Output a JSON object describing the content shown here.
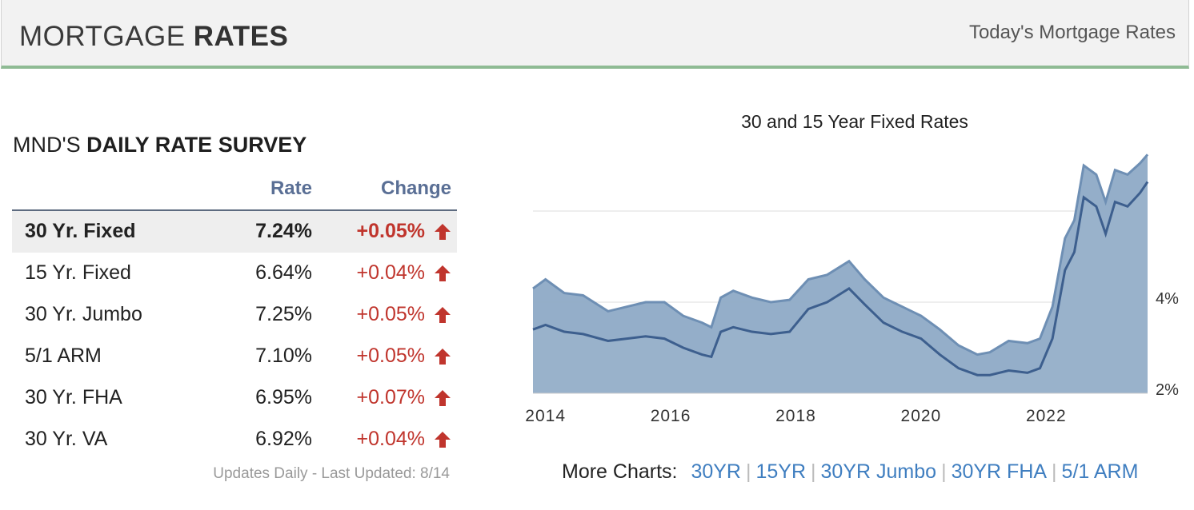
{
  "header": {
    "title_light": "MORTGAGE ",
    "title_bold": "RATES",
    "link": "Today's Mortgage Rates"
  },
  "survey": {
    "title_light": "MND'S ",
    "title_bold": "DAILY RATE SURVEY",
    "col_rate": "Rate",
    "col_change": "Change",
    "rows": [
      {
        "label": "30 Yr. Fixed",
        "rate": "7.24%",
        "change": "+0.05%",
        "direction": "up-arrow-icon"
      },
      {
        "label": "15 Yr. Fixed",
        "rate": "6.64%",
        "change": "+0.04%",
        "direction": "up-arrow-icon"
      },
      {
        "label": "30 Yr. Jumbo",
        "rate": "7.25%",
        "change": "+0.05%",
        "direction": "up-arrow-icon"
      },
      {
        "label": "5/1 ARM",
        "rate": "7.10%",
        "change": "+0.05%",
        "direction": "up-arrow-icon"
      },
      {
        "label": "30 Yr. FHA",
        "rate": "6.95%",
        "change": "+0.07%",
        "direction": "up-arrow-icon"
      },
      {
        "label": "30 Yr. VA",
        "rate": "6.92%",
        "change": "+0.04%",
        "direction": "up-arrow-icon"
      }
    ],
    "updated": "Updates Daily - Last Updated: 8/14"
  },
  "colors": {
    "accent_green": "#8fbb94",
    "header_text_blue": "#5a6f95",
    "change_red": "#c0352d",
    "link_blue": "#3f7ec0",
    "area_30yr": "#8eaac6",
    "line_30yr": "#6e8fb4",
    "line_15yr": "#3d5f8e"
  },
  "chart_data": {
    "type": "area",
    "title": "30 and 15 Year Fixed Rates",
    "xlabel": "",
    "ylabel": "",
    "x_ticks": [
      "2014",
      "2016",
      "2018",
      "2020",
      "2022"
    ],
    "y_ticks": [
      "2%",
      "4%"
    ],
    "ylim": [
      2,
      8
    ],
    "xlim": [
      2013.8,
      2023.62
    ],
    "grid": true,
    "series": [
      {
        "name": "30YR",
        "x": [
          2013.8,
          2014.0,
          2014.3,
          2014.6,
          2015.0,
          2015.3,
          2015.6,
          2015.9,
          2016.2,
          2016.5,
          2016.65,
          2016.8,
          2017.0,
          2017.3,
          2017.6,
          2017.9,
          2018.2,
          2018.5,
          2018.85,
          2019.1,
          2019.4,
          2019.7,
          2020.0,
          2020.3,
          2020.6,
          2020.9,
          2021.1,
          2021.4,
          2021.7,
          2021.9,
          2022.1,
          2022.3,
          2022.45,
          2022.6,
          2022.8,
          2022.95,
          2023.1,
          2023.3,
          2023.5,
          2023.62
        ],
        "values": [
          4.3,
          4.5,
          4.2,
          4.15,
          3.8,
          3.9,
          4.0,
          4.0,
          3.7,
          3.55,
          3.45,
          4.1,
          4.25,
          4.1,
          4.0,
          4.05,
          4.5,
          4.6,
          4.9,
          4.5,
          4.1,
          3.9,
          3.7,
          3.4,
          3.05,
          2.85,
          2.9,
          3.15,
          3.1,
          3.2,
          3.9,
          5.4,
          5.8,
          7.0,
          6.8,
          6.2,
          6.9,
          6.8,
          7.05,
          7.24
        ]
      },
      {
        "name": "15YR",
        "x": [
          2013.8,
          2014.0,
          2014.3,
          2014.6,
          2015.0,
          2015.3,
          2015.6,
          2015.9,
          2016.2,
          2016.5,
          2016.65,
          2016.8,
          2017.0,
          2017.3,
          2017.6,
          2017.9,
          2018.2,
          2018.5,
          2018.85,
          2019.1,
          2019.4,
          2019.7,
          2020.0,
          2020.3,
          2020.6,
          2020.9,
          2021.1,
          2021.4,
          2021.7,
          2021.9,
          2022.1,
          2022.3,
          2022.45,
          2022.6,
          2022.8,
          2022.95,
          2023.1,
          2023.3,
          2023.5,
          2023.62
        ],
        "values": [
          3.4,
          3.5,
          3.35,
          3.3,
          3.15,
          3.2,
          3.25,
          3.2,
          3.0,
          2.85,
          2.8,
          3.35,
          3.45,
          3.35,
          3.3,
          3.35,
          3.85,
          4.0,
          4.3,
          3.95,
          3.55,
          3.35,
          3.2,
          2.85,
          2.55,
          2.4,
          2.4,
          2.5,
          2.45,
          2.55,
          3.2,
          4.7,
          5.1,
          6.3,
          6.1,
          5.5,
          6.2,
          6.1,
          6.4,
          6.64
        ]
      }
    ]
  },
  "more_charts": {
    "label": "More Charts:",
    "links": [
      "30YR",
      "15YR",
      "30YR Jumbo",
      "30YR FHA",
      "5/1 ARM"
    ]
  }
}
